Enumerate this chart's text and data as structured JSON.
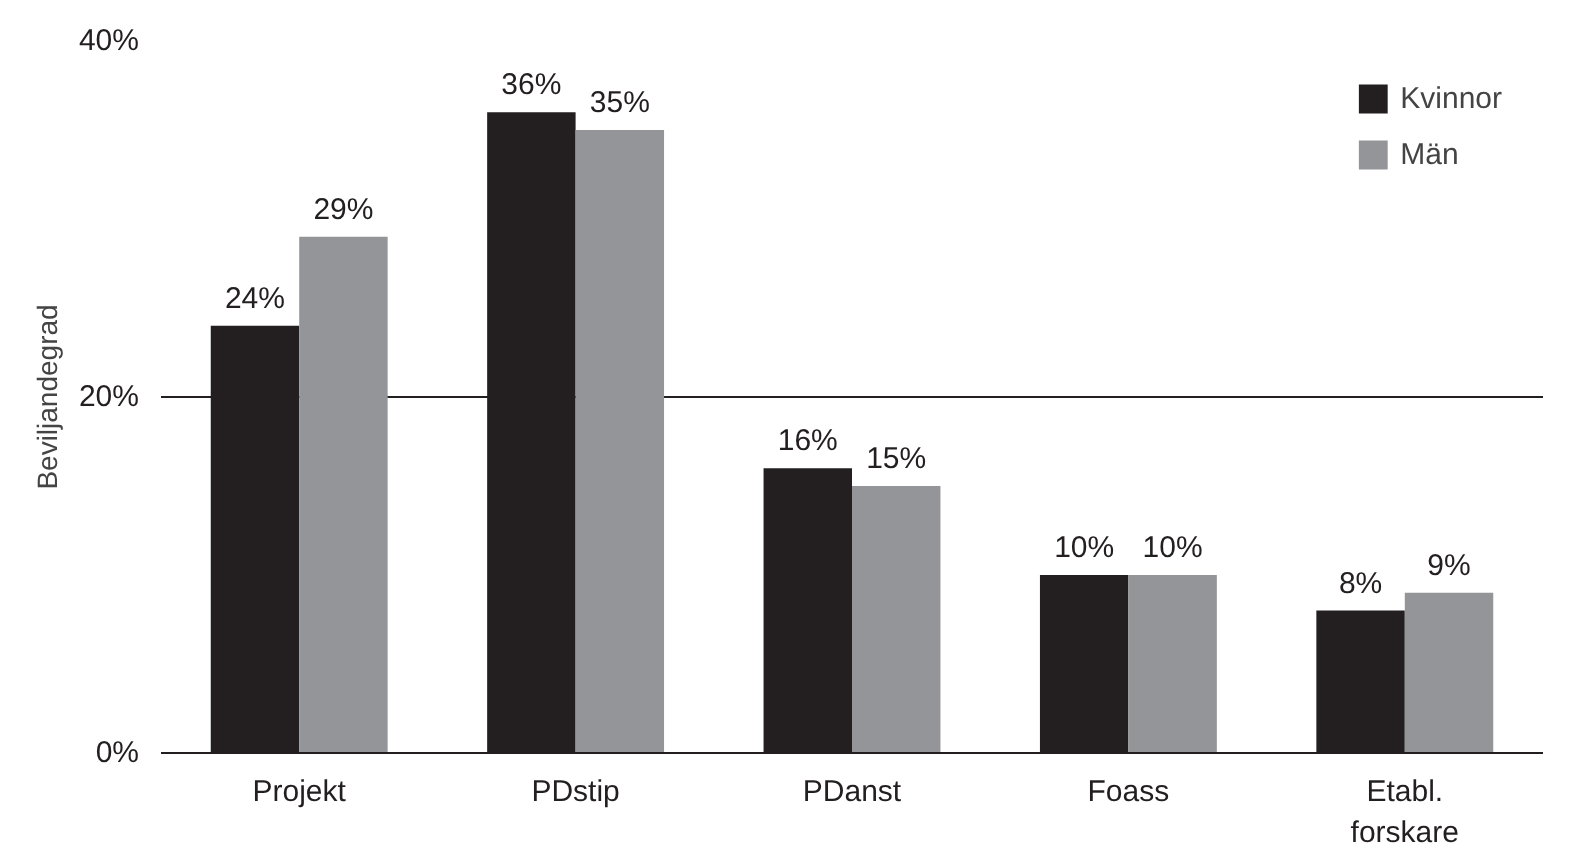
{
  "chart_data": {
    "type": "bar",
    "ylabel": "Beviljandegrad",
    "categories": [
      "Projekt",
      "PDstip",
      "PDanst",
      "Foass",
      "Etabl.\nforskare"
    ],
    "series": [
      {
        "name": "Kvinnor",
        "color": "#231f20",
        "values": [
          24,
          36,
          16,
          10,
          8
        ],
        "value_labels": [
          "24%",
          "36%",
          "16%",
          "10%",
          "8%"
        ]
      },
      {
        "name": "Män",
        "color": "#939598",
        "values": [
          29,
          35,
          15,
          10,
          9
        ],
        "value_labels": [
          "29%",
          "35%",
          "15%",
          "10%",
          "9%"
        ]
      }
    ],
    "ylim": [
      0,
      40
    ],
    "yticks": [
      {
        "value": 0,
        "label": "0%"
      },
      {
        "value": 20,
        "label": "20%"
      },
      {
        "value": 40,
        "label": "40%"
      }
    ],
    "grid": "y",
    "legend": "top right"
  }
}
